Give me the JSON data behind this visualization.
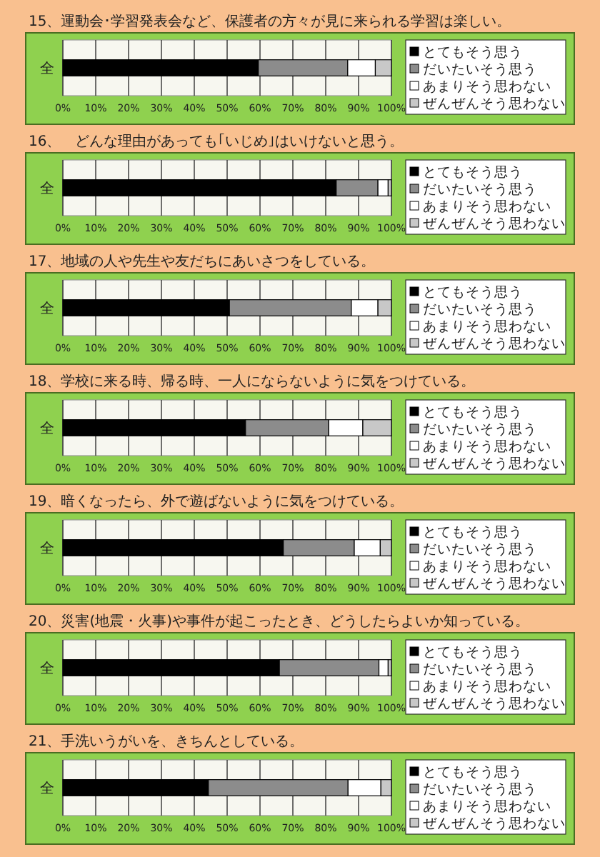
{
  "chart_data": [
    {
      "type": "bar",
      "title": "15、運動会･学習発表会など、保護者の方々が見に来られる学習は楽しい。",
      "orientation": "horizontal",
      "stacked": true,
      "categories": [
        "全"
      ],
      "xlim": [
        0,
        100
      ],
      "xticks": [
        {
          "value": 0,
          "label": "0%"
        },
        {
          "value": 10,
          "label": "10%"
        },
        {
          "value": 20,
          "label": "20%"
        },
        {
          "value": 30,
          "label": "30%"
        },
        {
          "value": 40,
          "label": "40%"
        },
        {
          "value": 50,
          "label": "50%"
        },
        {
          "value": 60,
          "label": "60%"
        },
        {
          "value": 70,
          "label": "70%"
        },
        {
          "value": 80,
          "label": "80%"
        },
        {
          "value": 90,
          "label": "90%"
        },
        {
          "value": 100,
          "label": "100%"
        }
      ],
      "grid": "x",
      "legend": "right",
      "series": [
        {
          "name": "とてもそう思う",
          "color": "#000000",
          "values": [
            59.5
          ]
        },
        {
          "name": "だいたいそう思う",
          "color": "#8c8c8c",
          "values": [
            27.2
          ]
        },
        {
          "name": "あまりそう思わない",
          "color": "#ffffff",
          "values": [
            8.4
          ]
        },
        {
          "name": "ぜんぜんそう思わない",
          "color": "#c8c8c8",
          "values": [
            4.9
          ]
        }
      ]
    },
    {
      "type": "bar",
      "title": "16、　どんな理由があっても｢いじめ｣はいけないと思う。",
      "orientation": "horizontal",
      "stacked": true,
      "categories": [
        "全"
      ],
      "xlim": [
        0,
        100
      ],
      "xticks": [
        {
          "value": 0,
          "label": "0%"
        },
        {
          "value": 10,
          "label": "10%"
        },
        {
          "value": 20,
          "label": "20%"
        },
        {
          "value": 30,
          "label": "30%"
        },
        {
          "value": 40,
          "label": "40%"
        },
        {
          "value": 50,
          "label": "50%"
        },
        {
          "value": 60,
          "label": "60%"
        },
        {
          "value": 70,
          "label": "70%"
        },
        {
          "value": 80,
          "label": "80%"
        },
        {
          "value": 90,
          "label": "90%"
        },
        {
          "value": 100,
          "label": "100%"
        }
      ],
      "grid": "x",
      "legend": "right",
      "series": [
        {
          "name": "とてもそう思う",
          "color": "#000000",
          "values": [
            83.2
          ]
        },
        {
          "name": "だいたいそう思う",
          "color": "#8c8c8c",
          "values": [
            12.7
          ]
        },
        {
          "name": "あまりそう思わない",
          "color": "#ffffff",
          "values": [
            3.1
          ]
        },
        {
          "name": "ぜんぜんそう思わない",
          "color": "#c8c8c8",
          "values": [
            1.0
          ]
        }
      ]
    },
    {
      "type": "bar",
      "title": "17、地域の人や先生や友だちにあいさつをしている。",
      "orientation": "horizontal",
      "stacked": true,
      "categories": [
        "全"
      ],
      "xlim": [
        0,
        100
      ],
      "xticks": [
        {
          "value": 0,
          "label": "0%"
        },
        {
          "value": 10,
          "label": "10%"
        },
        {
          "value": 20,
          "label": "20%"
        },
        {
          "value": 30,
          "label": "30%"
        },
        {
          "value": 40,
          "label": "40%"
        },
        {
          "value": 50,
          "label": "50%"
        },
        {
          "value": 60,
          "label": "60%"
        },
        {
          "value": 70,
          "label": "70%"
        },
        {
          "value": 80,
          "label": "80%"
        },
        {
          "value": 90,
          "label": "90%"
        },
        {
          "value": 100,
          "label": "100%"
        }
      ],
      "grid": "x",
      "legend": "right",
      "series": [
        {
          "name": "とてもそう思う",
          "color": "#000000",
          "values": [
            50.7
          ]
        },
        {
          "name": "だいたいそう思う",
          "color": "#8c8c8c",
          "values": [
            37.1
          ]
        },
        {
          "name": "あまりそう思わない",
          "color": "#ffffff",
          "values": [
            8.1
          ]
        },
        {
          "name": "ぜんぜんそう思わない",
          "color": "#c8c8c8",
          "values": [
            4.1
          ]
        }
      ]
    },
    {
      "type": "bar",
      "title": "18、学校に来る時、帰る時、一人にならないように気をつけている。",
      "orientation": "horizontal",
      "stacked": true,
      "categories": [
        "全"
      ],
      "xlim": [
        0,
        100
      ],
      "xticks": [
        {
          "value": 0,
          "label": "0%"
        },
        {
          "value": 10,
          "label": "10%"
        },
        {
          "value": 20,
          "label": "20%"
        },
        {
          "value": 30,
          "label": "30%"
        },
        {
          "value": 40,
          "label": "40%"
        },
        {
          "value": 50,
          "label": "50%"
        },
        {
          "value": 60,
          "label": "60%"
        },
        {
          "value": 70,
          "label": "70%"
        },
        {
          "value": 80,
          "label": "80%"
        },
        {
          "value": 90,
          "label": "90%"
        },
        {
          "value": 100,
          "label": "100%"
        }
      ],
      "grid": "x",
      "legend": "right",
      "series": [
        {
          "name": "とてもそう思う",
          "color": "#000000",
          "values": [
            55.6
          ]
        },
        {
          "name": "だいたいそう思う",
          "color": "#8c8c8c",
          "values": [
            25.3
          ]
        },
        {
          "name": "あまりそう思わない",
          "color": "#ffffff",
          "values": [
            10.4
          ]
        },
        {
          "name": "ぜんぜんそう思わない",
          "color": "#c8c8c8",
          "values": [
            8.7
          ]
        }
      ]
    },
    {
      "type": "bar",
      "title": "19、暗くなったら、外で遊ばないように気をつけている。",
      "orientation": "horizontal",
      "stacked": true,
      "categories": [
        "全"
      ],
      "xlim": [
        0,
        100
      ],
      "xticks": [
        {
          "value": 0,
          "label": "0%"
        },
        {
          "value": 10,
          "label": "10%"
        },
        {
          "value": 20,
          "label": "20%"
        },
        {
          "value": 30,
          "label": "30%"
        },
        {
          "value": 40,
          "label": "40%"
        },
        {
          "value": 50,
          "label": "50%"
        },
        {
          "value": 60,
          "label": "60%"
        },
        {
          "value": 70,
          "label": "70%"
        },
        {
          "value": 80,
          "label": "80%"
        },
        {
          "value": 90,
          "label": "90%"
        },
        {
          "value": 100,
          "label": "100%"
        }
      ],
      "grid": "x",
      "legend": "right",
      "series": [
        {
          "name": "とてもそう思う",
          "color": "#000000",
          "values": [
            67.1
          ]
        },
        {
          "name": "だいたいそう思う",
          "color": "#8c8c8c",
          "values": [
            21.6
          ]
        },
        {
          "name": "あまりそう思わない",
          "color": "#ffffff",
          "values": [
            7.9
          ]
        },
        {
          "name": "ぜんぜんそう思わない",
          "color": "#c8c8c8",
          "values": [
            3.4
          ]
        }
      ]
    },
    {
      "type": "bar",
      "title": "20、災害(地震・火事)や事件が起こったとき、どうしたらよいか知っている。",
      "orientation": "horizontal",
      "stacked": true,
      "categories": [
        "全"
      ],
      "xlim": [
        0,
        100
      ],
      "xticks": [
        {
          "value": 0,
          "label": "0%"
        },
        {
          "value": 10,
          "label": "10%"
        },
        {
          "value": 20,
          "label": "20%"
        },
        {
          "value": 30,
          "label": "30%"
        },
        {
          "value": 40,
          "label": "40%"
        },
        {
          "value": 50,
          "label": "50%"
        },
        {
          "value": 60,
          "label": "60%"
        },
        {
          "value": 70,
          "label": "70%"
        },
        {
          "value": 80,
          "label": "80%"
        },
        {
          "value": 90,
          "label": "90%"
        },
        {
          "value": 100,
          "label": "100%"
        }
      ],
      "grid": "x",
      "legend": "right",
      "series": [
        {
          "name": "とてもそう思う",
          "color": "#000000",
          "values": [
            65.9
          ]
        },
        {
          "name": "だいたいそう思う",
          "color": "#8c8c8c",
          "values": [
            30.3
          ]
        },
        {
          "name": "あまりそう思わない",
          "color": "#ffffff",
          "values": [
            2.8
          ]
        },
        {
          "name": "ぜんぜんそう思わない",
          "color": "#c8c8c8",
          "values": [
            1.0
          ]
        }
      ]
    },
    {
      "type": "bar",
      "title": "21、手洗いうがいを、きちんとしている。",
      "orientation": "horizontal",
      "stacked": true,
      "categories": [
        "全"
      ],
      "xlim": [
        0,
        100
      ],
      "xticks": [
        {
          "value": 0,
          "label": "0%"
        },
        {
          "value": 10,
          "label": "10%"
        },
        {
          "value": 20,
          "label": "20%"
        },
        {
          "value": 30,
          "label": "30%"
        },
        {
          "value": 40,
          "label": "40%"
        },
        {
          "value": 50,
          "label": "50%"
        },
        {
          "value": 60,
          "label": "60%"
        },
        {
          "value": 70,
          "label": "70%"
        },
        {
          "value": 80,
          "label": "80%"
        },
        {
          "value": 90,
          "label": "90%"
        },
        {
          "value": 100,
          "label": "100%"
        }
      ],
      "grid": "x",
      "legend": "right",
      "series": [
        {
          "name": "とてもそう思う",
          "color": "#000000",
          "values": [
            44.3
          ]
        },
        {
          "name": "だいたいそう思う",
          "color": "#8c8c8c",
          "values": [
            42.5
          ]
        },
        {
          "name": "あまりそう思わない",
          "color": "#ffffff",
          "values": [
            10.0
          ]
        },
        {
          "name": "ぜんぜんそう思わない",
          "color": "#c8c8c8",
          "values": [
            3.2
          ]
        }
      ]
    }
  ]
}
